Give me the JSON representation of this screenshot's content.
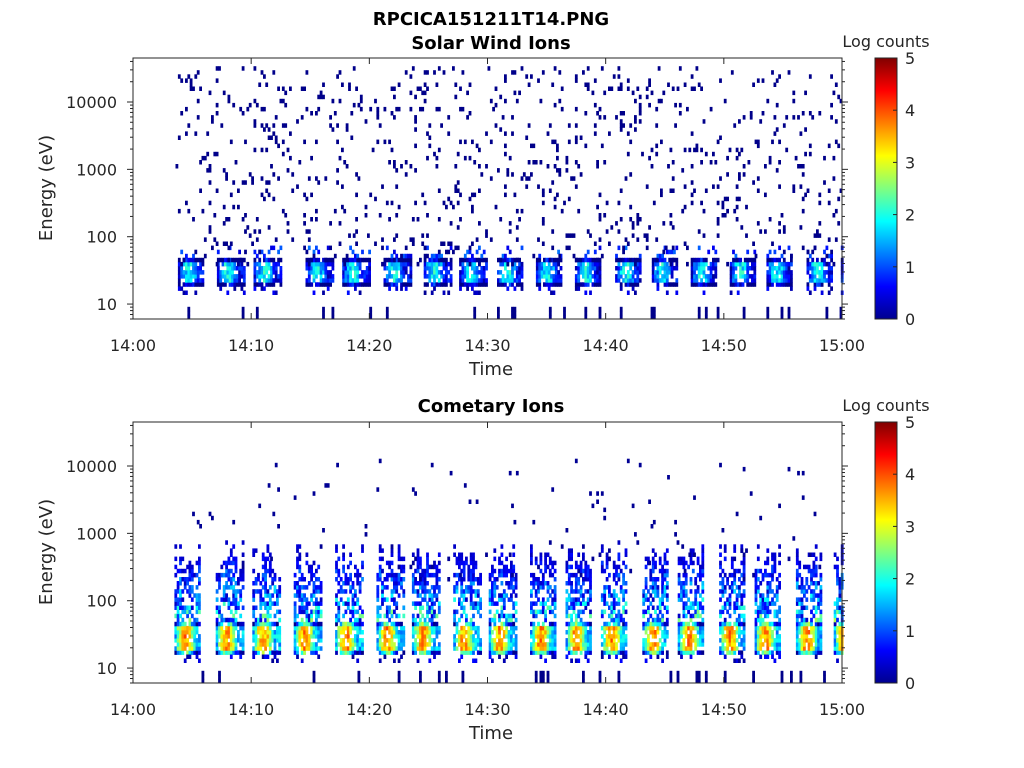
{
  "figure": {
    "title": "RPCICA151211T14.PNG"
  },
  "chart_data": [
    {
      "type": "heatmap",
      "title": "Solar Wind Ions",
      "xlabel": "Time",
      "ylabel": "Energy (eV)",
      "x_tick_labels": [
        "14:00",
        "14:10",
        "14:20",
        "14:30",
        "14:40",
        "14:50",
        "15:00"
      ],
      "x_range_minutes": [
        0,
        60
      ],
      "y_scale": "log",
      "y_tick_values": [
        10,
        100,
        1000,
        10000
      ],
      "y_tick_labels": [
        "10",
        "100",
        "1000",
        "10000"
      ],
      "ylim": [
        6,
        45000
      ],
      "colorbar": {
        "label": "Log counts",
        "range": [
          0,
          5
        ],
        "ticks": [
          "0",
          "1",
          "2",
          "3",
          "4",
          "5"
        ],
        "colormap": "jet"
      },
      "pulse_start_minutes": [
        3.8,
        7.1,
        10.2,
        14.6,
        17.7,
        21.2,
        24.6,
        27.6,
        30.8,
        34.1,
        37.4,
        40.8,
        43.9,
        47.2,
        50.5,
        53.6,
        57.0,
        59.9
      ],
      "core_energy_range_eV": [
        22,
        42
      ],
      "core_log_counts_range": [
        1.0,
        2.3
      ],
      "scatter_energy_range_eV": [
        40,
        30000
      ],
      "scatter_log_counts": 0.05,
      "scatter_density": 0.06
    },
    {
      "type": "heatmap",
      "title": "Cometary Ions",
      "xlabel": "Time",
      "ylabel": "Energy (eV)",
      "x_tick_labels": [
        "14:00",
        "14:10",
        "14:20",
        "14:30",
        "14:40",
        "14:50",
        "15:00"
      ],
      "x_range_minutes": [
        0,
        60
      ],
      "y_scale": "log",
      "y_tick_values": [
        10,
        100,
        1000,
        10000
      ],
      "y_tick_labels": [
        "10",
        "100",
        "1000",
        "10000"
      ],
      "ylim": [
        6,
        45000
      ],
      "colorbar": {
        "label": "Log counts",
        "range": [
          0,
          5
        ],
        "ticks": [
          "0",
          "1",
          "2",
          "3",
          "4",
          "5"
        ],
        "colormap": "jet"
      },
      "pulse_start_minutes": [
        3.5,
        7.0,
        10.1,
        13.6,
        17.1,
        20.6,
        23.6,
        27.1,
        30.1,
        33.6,
        36.6,
        39.6,
        43.1,
        46.1,
        49.6,
        52.6,
        56.1,
        59.3
      ],
      "core_energy_range_eV": [
        20,
        42
      ],
      "core_log_counts_range": [
        2.0,
        4.1
      ],
      "plume_top_energy_eV": [
        200,
        700
      ],
      "plume_log_counts_range": [
        0.3,
        2.6
      ],
      "scatter_energy_range_eV": [
        200,
        12000
      ],
      "scatter_log_counts": 0.1,
      "scatter_density": 0.012
    }
  ]
}
